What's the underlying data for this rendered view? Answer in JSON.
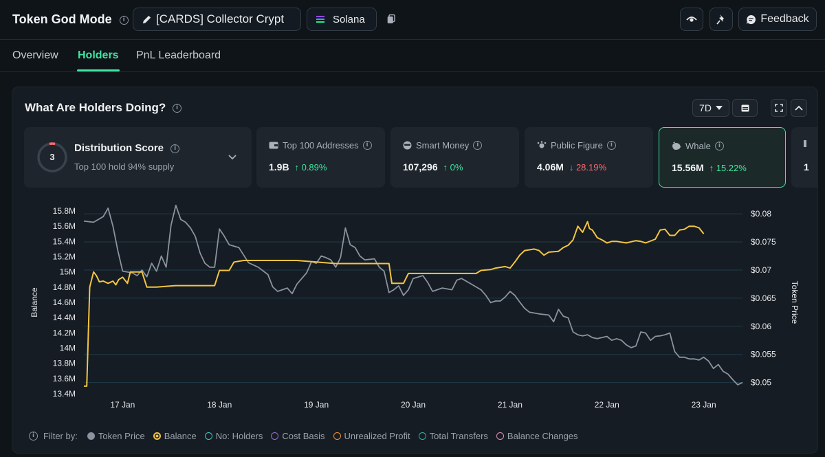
{
  "header": {
    "title": "Token God Mode",
    "token_name": "[CARDS] Collector Crypt",
    "chain": "Solana",
    "feedback_label": "Feedback"
  },
  "tabs": [
    {
      "label": "Overview",
      "active": false
    },
    {
      "label": "Holders",
      "active": true
    },
    {
      "label": "PnL Leaderboard",
      "active": false
    }
  ],
  "panel": {
    "title": "What Are Holders Doing?",
    "timeframe": "7D"
  },
  "distribution": {
    "score": "3",
    "title": "Distribution Score",
    "subtitle": "Top 100 hold 94% supply"
  },
  "cards": [
    {
      "label": "Top 100 Addresses",
      "value": "1.9B",
      "change": "0.89%",
      "direction": "up",
      "icon": "wallet-icon"
    },
    {
      "label": "Smart Money",
      "value": "107,296",
      "change": "0%",
      "direction": "up",
      "icon": "smart-money-icon"
    },
    {
      "label": "Public Figure",
      "value": "4.06M",
      "change": "28.19%",
      "direction": "down",
      "icon": "public-figure-icon"
    },
    {
      "label": "Whale",
      "value": "15.56M",
      "change": "15.22%",
      "direction": "up",
      "icon": "whale-icon",
      "active": true
    },
    {
      "label": "",
      "value": "1",
      "change": "",
      "direction": "",
      "icon": "partial-card-icon"
    }
  ],
  "legend": {
    "filter_label": "Filter by:",
    "items": [
      {
        "label": "Token Price",
        "color": "#8a939e",
        "filled": true
      },
      {
        "label": "Balance",
        "color": "#f5c542",
        "filled": false,
        "selected": true
      },
      {
        "label": "No: Holders",
        "color": "#3ec6c9",
        "filled": false
      },
      {
        "label": "Cost Basis",
        "color": "#9b6bd6",
        "filled": false
      },
      {
        "label": "Unrealized Profit",
        "color": "#f0923a",
        "filled": false
      },
      {
        "label": "Total Transfers",
        "color": "#2bb3a3",
        "filled": false
      },
      {
        "label": "Balance Changes",
        "color": "#e58fb5",
        "filled": false
      }
    ]
  },
  "chart_data": {
    "type": "line",
    "left_axis_label": "Balance",
    "right_axis_label": "Token Price",
    "left_ticks": [
      "15.8M",
      "15.6M",
      "15.4M",
      "15.2M",
      "15M",
      "14.8M",
      "14.6M",
      "14.4M",
      "14.2M",
      "14M",
      "13.8M",
      "13.6M",
      "13.4M"
    ],
    "right_ticks": [
      "$0.08",
      "$0.075",
      "$0.07",
      "$0.065",
      "$0.06",
      "$0.055",
      "$0.05"
    ],
    "x_ticks": [
      "17 Jan",
      "18 Jan",
      "19 Jan",
      "20 Jan",
      "21 Jan",
      "22 Jan",
      "23 Jan"
    ],
    "ylim_left": [
      13.4,
      15.8
    ],
    "ylim_right": [
      0.048,
      0.0805
    ],
    "xlim": [
      16.6,
      23.4
    ],
    "series": [
      {
        "name": "Token Price",
        "axis": "right",
        "color": "#8a939e",
        "points": [
          [
            16.6,
            0.0787
          ],
          [
            16.7,
            0.0785
          ],
          [
            16.8,
            0.0795
          ],
          [
            16.85,
            0.081
          ],
          [
            16.9,
            0.0778
          ],
          [
            16.95,
            0.0735
          ],
          [
            17.0,
            0.0698
          ],
          [
            17.1,
            0.0695
          ],
          [
            17.15,
            0.069
          ],
          [
            17.2,
            0.07
          ],
          [
            17.25,
            0.0688
          ],
          [
            17.3,
            0.0712
          ],
          [
            17.35,
            0.0698
          ],
          [
            17.4,
            0.0725
          ],
          [
            17.45,
            0.0705
          ],
          [
            17.5,
            0.078
          ],
          [
            17.55,
            0.0815
          ],
          [
            17.6,
            0.079
          ],
          [
            17.65,
            0.0785
          ],
          [
            17.7,
            0.0775
          ],
          [
            17.75,
            0.076
          ],
          [
            17.8,
            0.073
          ],
          [
            17.85,
            0.0712
          ],
          [
            17.9,
            0.0705
          ],
          [
            17.95,
            0.0705
          ],
          [
            18.0,
            0.0773
          ],
          [
            18.05,
            0.076
          ],
          [
            18.1,
            0.0745
          ],
          [
            18.2,
            0.074
          ],
          [
            18.3,
            0.0713
          ],
          [
            18.4,
            0.0705
          ],
          [
            18.5,
            0.0692
          ],
          [
            18.55,
            0.067
          ],
          [
            18.6,
            0.0662
          ],
          [
            18.7,
            0.0668
          ],
          [
            18.75,
            0.0658
          ],
          [
            18.8,
            0.0675
          ],
          [
            18.9,
            0.0695
          ],
          [
            18.95,
            0.0715
          ],
          [
            19.0,
            0.0712
          ],
          [
            19.05,
            0.0725
          ],
          [
            19.1,
            0.0722
          ],
          [
            19.15,
            0.0718
          ],
          [
            19.2,
            0.0705
          ],
          [
            19.25,
            0.0722
          ],
          [
            19.3,
            0.0775
          ],
          [
            19.35,
            0.0745
          ],
          [
            19.4,
            0.074
          ],
          [
            19.45,
            0.0725
          ],
          [
            19.5,
            0.0718
          ],
          [
            19.6,
            0.072
          ],
          [
            19.65,
            0.0705
          ],
          [
            19.7,
            0.0698
          ],
          [
            19.75,
            0.066
          ],
          [
            19.8,
            0.0665
          ],
          [
            19.85,
            0.0672
          ],
          [
            19.9,
            0.0655
          ],
          [
            19.95,
            0.0665
          ],
          [
            20.0,
            0.0685
          ],
          [
            20.1,
            0.069
          ],
          [
            20.15,
            0.0678
          ],
          [
            20.2,
            0.0662
          ],
          [
            20.3,
            0.0668
          ],
          [
            20.4,
            0.0665
          ],
          [
            20.45,
            0.0682
          ],
          [
            20.5,
            0.0685
          ],
          [
            20.6,
            0.0675
          ],
          [
            20.7,
            0.0665
          ],
          [
            20.75,
            0.0655
          ],
          [
            20.8,
            0.0642
          ],
          [
            20.85,
            0.0645
          ],
          [
            20.9,
            0.0645
          ],
          [
            20.95,
            0.0652
          ],
          [
            21.0,
            0.0662
          ],
          [
            21.05,
            0.0655
          ],
          [
            21.1,
            0.0643
          ],
          [
            21.15,
            0.0632
          ],
          [
            21.2,
            0.0625
          ],
          [
            21.3,
            0.0622
          ],
          [
            21.4,
            0.062
          ],
          [
            21.45,
            0.0608
          ],
          [
            21.5,
            0.063
          ],
          [
            21.55,
            0.0618
          ],
          [
            21.6,
            0.0615
          ],
          [
            21.65,
            0.059
          ],
          [
            21.7,
            0.0585
          ],
          [
            21.75,
            0.0583
          ],
          [
            21.8,
            0.0585
          ],
          [
            21.85,
            0.058
          ],
          [
            21.9,
            0.0578
          ],
          [
            22.0,
            0.0582
          ],
          [
            22.05,
            0.0575
          ],
          [
            22.1,
            0.0578
          ],
          [
            22.15,
            0.0575
          ],
          [
            22.2,
            0.0567
          ],
          [
            22.25,
            0.0562
          ],
          [
            22.3,
            0.0565
          ],
          [
            22.35,
            0.059
          ],
          [
            22.4,
            0.0588
          ],
          [
            22.45,
            0.0575
          ],
          [
            22.5,
            0.0582
          ],
          [
            22.55,
            0.0583
          ],
          [
            22.6,
            0.0585
          ],
          [
            22.65,
            0.0588
          ],
          [
            22.7,
            0.0555
          ],
          [
            22.75,
            0.0545
          ],
          [
            22.8,
            0.0545
          ],
          [
            22.85,
            0.0542
          ],
          [
            22.9,
            0.0542
          ],
          [
            22.95,
            0.054
          ],
          [
            23.0,
            0.0545
          ],
          [
            23.05,
            0.0538
          ],
          [
            23.1,
            0.0525
          ],
          [
            23.15,
            0.0532
          ],
          [
            23.2,
            0.052
          ],
          [
            23.25,
            0.0515
          ],
          [
            23.3,
            0.0505
          ],
          [
            23.35,
            0.0496
          ],
          [
            23.4,
            0.05
          ]
        ]
      },
      {
        "name": "Balance",
        "axis": "left",
        "color": "#f5c542",
        "points": [
          [
            16.6,
            13.5
          ],
          [
            16.63,
            13.5
          ],
          [
            16.66,
            14.8
          ],
          [
            16.7,
            15.0
          ],
          [
            16.73,
            14.95
          ],
          [
            16.76,
            14.87
          ],
          [
            16.8,
            14.88
          ],
          [
            16.85,
            14.85
          ],
          [
            16.9,
            14.88
          ],
          [
            16.93,
            14.83
          ],
          [
            16.96,
            14.9
          ],
          [
            17.0,
            14.93
          ],
          [
            17.05,
            14.85
          ],
          [
            17.08,
            15.0
          ],
          [
            17.15,
            15.0
          ],
          [
            17.2,
            15.0
          ],
          [
            17.25,
            14.8
          ],
          [
            17.35,
            14.8
          ],
          [
            17.55,
            14.82
          ],
          [
            17.65,
            14.82
          ],
          [
            17.85,
            14.82
          ],
          [
            17.95,
            14.82
          ],
          [
            18.0,
            15.02
          ],
          [
            18.1,
            15.02
          ],
          [
            18.15,
            15.13
          ],
          [
            18.25,
            15.15
          ],
          [
            18.4,
            15.15
          ],
          [
            18.6,
            15.15
          ],
          [
            18.8,
            15.15
          ],
          [
            19.0,
            15.13
          ],
          [
            19.2,
            15.11
          ],
          [
            19.4,
            15.11
          ],
          [
            19.6,
            15.11
          ],
          [
            19.75,
            15.11
          ],
          [
            19.78,
            14.85
          ],
          [
            19.9,
            14.85
          ],
          [
            19.95,
            14.98
          ],
          [
            20.1,
            14.98
          ],
          [
            20.3,
            14.98
          ],
          [
            20.5,
            14.98
          ],
          [
            20.65,
            14.98
          ],
          [
            20.7,
            15.02
          ],
          [
            20.8,
            15.03
          ],
          [
            20.85,
            15.05
          ],
          [
            20.95,
            15.07
          ],
          [
            21.0,
            15.05
          ],
          [
            21.05,
            15.13
          ],
          [
            21.1,
            15.22
          ],
          [
            21.15,
            15.28
          ],
          [
            21.25,
            15.3
          ],
          [
            21.3,
            15.28
          ],
          [
            21.35,
            15.22
          ],
          [
            21.4,
            15.26
          ],
          [
            21.5,
            15.27
          ],
          [
            21.55,
            15.32
          ],
          [
            21.6,
            15.35
          ],
          [
            21.65,
            15.42
          ],
          [
            21.7,
            15.6
          ],
          [
            21.75,
            15.52
          ],
          [
            21.8,
            15.66
          ],
          [
            21.82,
            15.57
          ],
          [
            21.85,
            15.55
          ],
          [
            21.9,
            15.45
          ],
          [
            21.95,
            15.42
          ],
          [
            22.0,
            15.38
          ],
          [
            22.05,
            15.4
          ],
          [
            22.1,
            15.4
          ],
          [
            22.2,
            15.38
          ],
          [
            22.3,
            15.41
          ],
          [
            22.35,
            15.4
          ],
          [
            22.4,
            15.38
          ],
          [
            22.5,
            15.43
          ],
          [
            22.55,
            15.55
          ],
          [
            22.6,
            15.56
          ],
          [
            22.65,
            15.48
          ],
          [
            22.7,
            15.48
          ],
          [
            22.75,
            15.55
          ],
          [
            22.8,
            15.56
          ],
          [
            22.85,
            15.6
          ],
          [
            22.9,
            15.6
          ],
          [
            22.95,
            15.58
          ],
          [
            23.0,
            15.5
          ]
        ]
      }
    ]
  }
}
